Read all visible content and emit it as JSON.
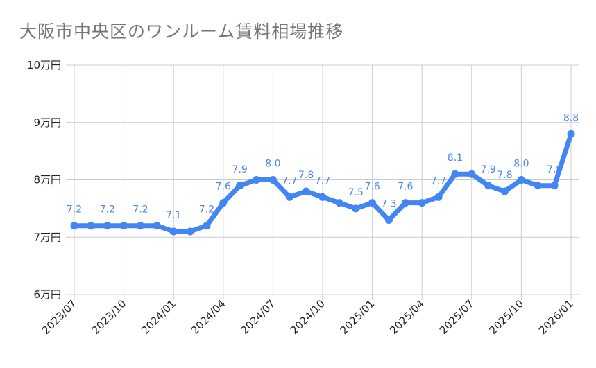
{
  "chart_data": {
    "type": "line",
    "title": "大阪市中央区のワンルーム賃料相場推移",
    "x": [
      "2023/07",
      "2023/08",
      "2023/09",
      "2023/10",
      "2023/11",
      "2023/12",
      "2024/01",
      "2024/02",
      "2024/03",
      "2024/04",
      "2024/05",
      "2024/06",
      "2024/07",
      "2024/08",
      "2024/09",
      "2024/10",
      "2024/11",
      "2024/12",
      "2025/01",
      "2025/02",
      "2025/03",
      "2025/04",
      "2025/05",
      "2025/06",
      "2025/07",
      "2025/08",
      "2025/09",
      "2025/10",
      "2025/11",
      "2025/12",
      "2026/01"
    ],
    "x_tick_labels": [
      "2023/07",
      "2023/10",
      "2024/01",
      "2024/04",
      "2024/07",
      "2024/10",
      "2025/01",
      "2025/04",
      "2025/07",
      "2025/10",
      "2026/01"
    ],
    "series": [
      {
        "values": [
          7.2,
          7.2,
          7.2,
          7.2,
          7.2,
          7.2,
          7.1,
          7.1,
          7.2,
          7.6,
          7.9,
          8.0,
          8.0,
          7.7,
          7.8,
          7.7,
          7.6,
          7.5,
          7.6,
          7.3,
          7.6,
          7.6,
          7.7,
          8.1,
          8.1,
          7.9,
          7.8,
          8.0,
          7.9,
          7.9,
          8.8
        ],
        "data_labels": [
          "7.2",
          null,
          "7.2",
          null,
          "7.2",
          null,
          "7.1",
          null,
          "7.2",
          "7.6",
          "7.9",
          null,
          "8.0",
          "7.7",
          "7.8",
          "7.7",
          null,
          "7.5",
          "7.6",
          "7.3",
          "7.6",
          null,
          "7.7",
          "8.1",
          null,
          "7.9",
          "7.8",
          "8.0",
          null,
          "7.9",
          "8.8"
        ],
        "color": "#4285f4"
      }
    ],
    "y_tick_labels": [
      "6万円",
      "7万円",
      "8万円",
      "9万円",
      "10万円"
    ],
    "y_ticks": [
      6,
      7,
      8,
      9,
      10
    ],
    "ylim": [
      6,
      10
    ],
    "xlabel": "",
    "ylabel": "",
    "grid": true,
    "legend": "none"
  }
}
